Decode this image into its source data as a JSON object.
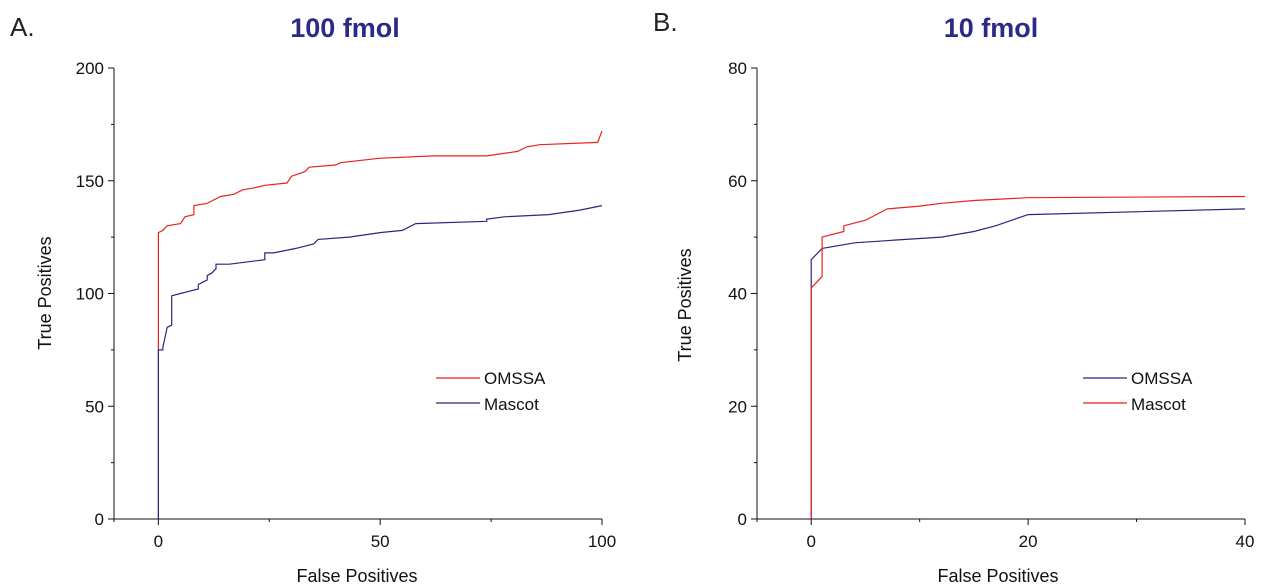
{
  "chart_data": [
    {
      "type": "line",
      "panel_label": "A.",
      "title": "100 fmol",
      "xlabel": "False Positives",
      "ylabel": "True Positives",
      "xlim": [
        -10,
        100
      ],
      "ylim": [
        0,
        200
      ],
      "x_ticks": [
        0,
        50,
        100
      ],
      "y_ticks": [
        0,
        50,
        100,
        150,
        200
      ],
      "x_minor_ticks": [
        -10,
        25,
        75
      ],
      "y_minor_ticks": [
        25,
        75,
        125,
        175
      ],
      "grid": false,
      "legend_position": "right",
      "series": [
        {
          "name": "OMSSA",
          "color": "#e8231e",
          "points": [
            [
              0,
              0
            ],
            [
              0,
              127
            ],
            [
              1,
              128
            ],
            [
              2,
              130
            ],
            [
              5,
              131
            ],
            [
              6,
              134
            ],
            [
              8,
              135
            ],
            [
              8,
              139
            ],
            [
              11,
              140
            ],
            [
              12,
              141
            ],
            [
              14,
              143
            ],
            [
              17,
              144
            ],
            [
              19,
              146
            ],
            [
              22,
              147
            ],
            [
              24,
              148
            ],
            [
              29,
              149
            ],
            [
              30,
              152
            ],
            [
              33,
              154
            ],
            [
              34,
              156
            ],
            [
              40,
              157
            ],
            [
              41,
              158
            ],
            [
              50,
              160
            ],
            [
              62,
              161
            ],
            [
              74,
              161
            ],
            [
              81,
              163
            ],
            [
              83,
              165
            ],
            [
              86,
              166
            ],
            [
              99,
              167
            ],
            [
              100,
              172
            ]
          ]
        },
        {
          "name": "Mascot",
          "color": "#28287e",
          "points": [
            [
              0,
              0
            ],
            [
              0,
              75
            ],
            [
              1,
              75
            ],
            [
              1,
              76
            ],
            [
              2,
              85
            ],
            [
              3,
              86
            ],
            [
              3,
              99
            ],
            [
              5,
              100
            ],
            [
              7,
              101
            ],
            [
              9,
              102
            ],
            [
              9,
              104
            ],
            [
              10,
              105
            ],
            [
              11,
              106
            ],
            [
              11,
              108
            ],
            [
              12,
              109
            ],
            [
              13,
              111
            ],
            [
              13,
              113
            ],
            [
              16,
              113
            ],
            [
              24,
              115
            ],
            [
              24,
              118
            ],
            [
              26,
              118
            ],
            [
              31,
              120
            ],
            [
              35,
              122
            ],
            [
              36,
              124
            ],
            [
              43,
              125
            ],
            [
              50,
              127
            ],
            [
              55,
              128
            ],
            [
              58,
              131
            ],
            [
              74,
              132
            ],
            [
              74,
              133
            ],
            [
              78,
              134
            ],
            [
              88,
              135
            ],
            [
              95,
              137
            ],
            [
              100,
              139
            ]
          ]
        }
      ]
    },
    {
      "type": "line",
      "panel_label": "B.",
      "title": "10 fmol",
      "xlabel": "False Positives",
      "ylabel": "True Positives",
      "xlim": [
        -5,
        40
      ],
      "ylim": [
        0,
        80
      ],
      "x_ticks": [
        0,
        20,
        40
      ],
      "y_ticks": [
        0,
        20,
        40,
        60,
        80
      ],
      "x_minor_ticks": [
        -5,
        10,
        30
      ],
      "y_minor_ticks": [
        10,
        30,
        50,
        70
      ],
      "grid": false,
      "legend_position": "right",
      "series": [
        {
          "name": "OMSSA",
          "color": "#28287e",
          "points": [
            [
              0,
              0
            ],
            [
              0,
              46
            ],
            [
              1,
              48
            ],
            [
              4,
              49
            ],
            [
              8,
              49.5
            ],
            [
              12,
              50
            ],
            [
              15,
              51
            ],
            [
              17,
              52
            ],
            [
              20,
              54
            ],
            [
              40,
              55
            ]
          ]
        },
        {
          "name": "Mascot",
          "color": "#e8231e",
          "points": [
            [
              0,
              0
            ],
            [
              0,
              41
            ],
            [
              1,
              43
            ],
            [
              1,
              50
            ],
            [
              3,
              51
            ],
            [
              3,
              52
            ],
            [
              5,
              53
            ],
            [
              6,
              54
            ],
            [
              7,
              55
            ],
            [
              10,
              55.5
            ],
            [
              12,
              56
            ],
            [
              15,
              56.5
            ],
            [
              20,
              57
            ],
            [
              40,
              57.2
            ]
          ]
        }
      ]
    }
  ]
}
